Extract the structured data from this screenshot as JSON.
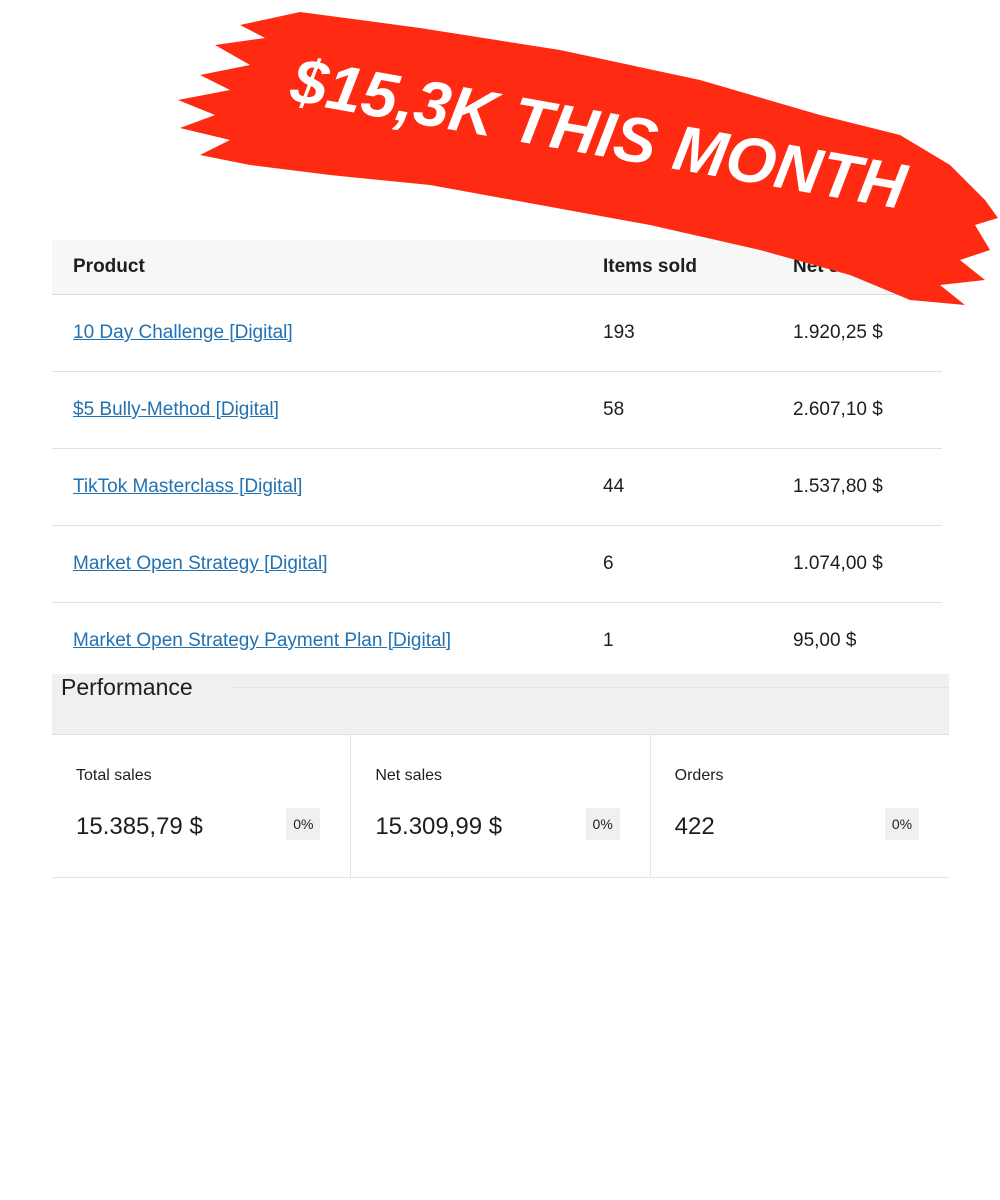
{
  "banner": {
    "text": "$15,3K THIS MONTH",
    "color": "#ff2a12"
  },
  "table": {
    "headers": [
      "Product",
      "Items sold",
      "Net sales"
    ],
    "rows": [
      {
        "product": "10 Day Challenge [Digital]",
        "items_sold": "193",
        "net_sales": "1.920,25 $"
      },
      {
        "product": "$5 Bully-Method [Digital]",
        "items_sold": "58",
        "net_sales": "2.607,10 $"
      },
      {
        "product": "TikTok Masterclass [Digital]",
        "items_sold": "44",
        "net_sales": "1.537,80 $"
      },
      {
        "product": "Market Open Strategy [Digital]",
        "items_sold": "6",
        "net_sales": "1.074,00 $"
      },
      {
        "product": "Market Open Strategy Payment Plan [Digital]",
        "items_sold": "1",
        "net_sales": "95,00 $"
      }
    ]
  },
  "performance": {
    "title": "Performance",
    "cards": [
      {
        "label": "Total sales",
        "value": "15.385,79 $",
        "change": "0%"
      },
      {
        "label": "Net sales",
        "value": "15.309,99 $",
        "change": "0%"
      },
      {
        "label": "Orders",
        "value": "422",
        "change": "0%"
      }
    ]
  }
}
